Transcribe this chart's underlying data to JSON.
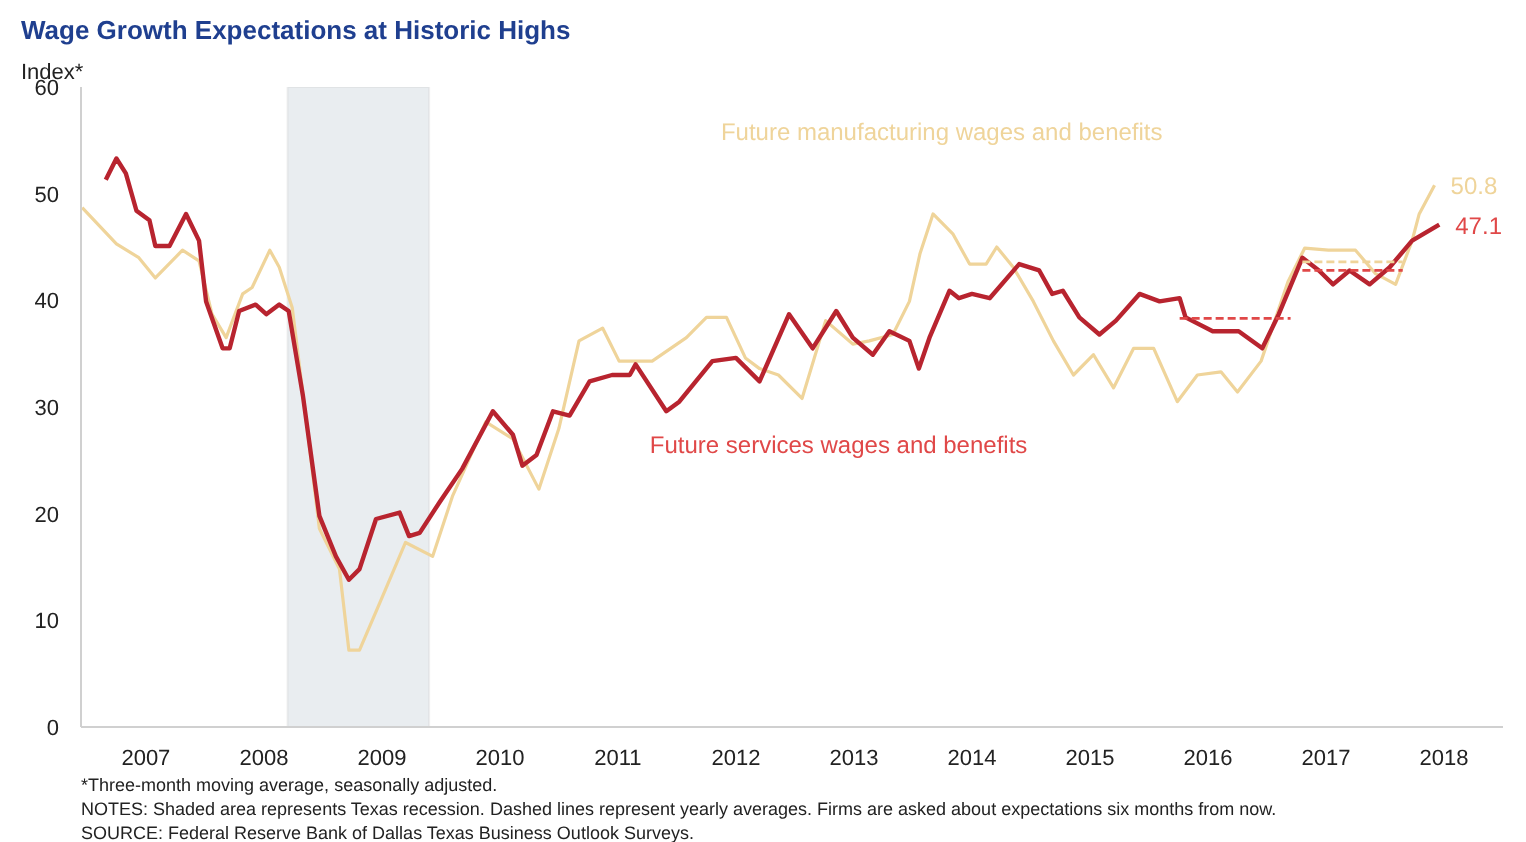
{
  "chart_data": {
    "type": "line",
    "title": "Wage Growth Expectations at Historic Highs",
    "ylabel": "Index*",
    "xlim": [
      2006.95,
      2019
    ],
    "ylim": [
      0,
      60
    ],
    "xticks": [
      {
        "value": 2007.5,
        "label": "2007"
      },
      {
        "value": 2008.5,
        "label": "2008"
      },
      {
        "value": 2009.5,
        "label": "2009"
      },
      {
        "value": 2010.5,
        "label": "2010"
      },
      {
        "value": 2011.5,
        "label": "2011"
      },
      {
        "value": 2012.5,
        "label": "2012"
      },
      {
        "value": 2013.5,
        "label": "2013"
      },
      {
        "value": 2014.5,
        "label": "2014"
      },
      {
        "value": 2015.5,
        "label": "2015"
      },
      {
        "value": 2016.5,
        "label": "2016"
      },
      {
        "value": 2017.5,
        "label": "2017"
      },
      {
        "value": 2018.5,
        "label": "2018"
      }
    ],
    "yticks": [
      0,
      10,
      20,
      30,
      40,
      50,
      60
    ],
    "grid": false,
    "bands": [
      {
        "axis": "x",
        "from": 2008.7,
        "to": 2009.9,
        "color": "#e9edf0"
      }
    ],
    "series": [
      {
        "name": "Future manufacturing wages and benefits",
        "color": "#efd49a",
        "x": [
          2006.96,
          2007.25,
          2007.44,
          2007.58,
          2007.81,
          2007.95,
          2008.06,
          2008.18,
          2008.32,
          2008.4,
          2008.55,
          2008.63,
          2008.74,
          2008.86,
          2008.97,
          2009.14,
          2009.22,
          2009.31,
          2009.48,
          2009.7,
          2009.93,
          2010.1,
          2010.38,
          2010.61,
          2010.83,
          2011.0,
          2011.17,
          2011.37,
          2011.51,
          2011.79,
          2012.08,
          2012.25,
          2012.42,
          2012.58,
          2012.7,
          2012.86,
          2013.06,
          2013.26,
          2013.49,
          2013.63,
          2013.83,
          2013.97,
          2014.06,
          2014.17,
          2014.34,
          2014.48,
          2014.62,
          2014.71,
          2014.85,
          2015.02,
          2015.19,
          2015.36,
          2015.53,
          2015.7,
          2015.87,
          2016.04,
          2016.24,
          2016.41,
          2016.61,
          2016.75,
          2016.95,
          2017.18,
          2017.32,
          2017.52,
          2017.75,
          2017.92,
          2018.09,
          2018.23,
          2018.29,
          2018.42
        ],
        "values": [
          48.7,
          45.3,
          44.0,
          42.1,
          44.7,
          43.7,
          38.7,
          36.5,
          40.6,
          41.2,
          44.7,
          43.1,
          39.3,
          28.6,
          18.6,
          14.8,
          7.2,
          7.2,
          11.6,
          17.3,
          16.0,
          21.7,
          28.6,
          27.0,
          22.3,
          28.0,
          36.2,
          37.4,
          34.3,
          34.3,
          36.5,
          38.4,
          38.4,
          34.6,
          33.6,
          33.0,
          30.8,
          38.1,
          35.9,
          36.2,
          36.8,
          39.9,
          44.4,
          48.1,
          46.2,
          43.4,
          43.4,
          45.0,
          43.1,
          39.9,
          36.2,
          33.0,
          34.9,
          31.8,
          35.5,
          35.5,
          30.5,
          33.0,
          33.3,
          31.4,
          34.3,
          41.8,
          44.9,
          44.7,
          44.7,
          42.5,
          41.5,
          45.6,
          48.1,
          50.8
        ],
        "value_labels": [
          null,
          null,
          null,
          null,
          null,
          null,
          null,
          null,
          null,
          null,
          null,
          null,
          null,
          null,
          null,
          null,
          null,
          null,
          null,
          null,
          null,
          null,
          null,
          null,
          null,
          null,
          null,
          null,
          null,
          null,
          null,
          null,
          null,
          null,
          null,
          null,
          null,
          null,
          null,
          null,
          null,
          null,
          null,
          null,
          null,
          null,
          null,
          null,
          null,
          null,
          null,
          null,
          null,
          null,
          null,
          null,
          null,
          null,
          null,
          null,
          null,
          null,
          null,
          null,
          null,
          null,
          null,
          null,
          null,
          "50.8"
        ]
      },
      {
        "name": "Future services wages and benefits",
        "color": "#b8242f",
        "x": [
          2007.16,
          2007.25,
          2007.33,
          2007.42,
          2007.53,
          2007.58,
          2007.7,
          2007.84,
          2007.95,
          2008.01,
          2008.15,
          2008.21,
          2008.29,
          2008.43,
          2008.52,
          2008.63,
          2008.71,
          2008.83,
          2008.97,
          2009.11,
          2009.22,
          2009.31,
          2009.45,
          2009.65,
          2009.73,
          2009.82,
          2009.99,
          2010.18,
          2010.44,
          2010.61,
          2010.69,
          2010.81,
          2010.95,
          2011.09,
          2011.26,
          2011.45,
          2011.6,
          2011.65,
          2011.91,
          2012.02,
          2012.3,
          2012.5,
          2012.7,
          2012.95,
          2013.15,
          2013.35,
          2013.49,
          2013.66,
          2013.8,
          2013.97,
          2014.05,
          2014.14,
          2014.31,
          2014.39,
          2014.5,
          2014.65,
          2014.9,
          2015.07,
          2015.18,
          2015.27,
          2015.41,
          2015.58,
          2015.72,
          2015.92,
          2016.09,
          2016.26,
          2016.31,
          2016.54,
          2016.76,
          2016.96,
          2017.1,
          2017.3,
          2017.44,
          2017.56,
          2017.7,
          2017.87,
          2018.04,
          2018.23,
          2018.46
        ],
        "values": [
          51.3,
          53.3,
          51.9,
          48.4,
          47.5,
          45.1,
          45.1,
          48.1,
          45.6,
          39.9,
          35.5,
          35.5,
          39.0,
          39.6,
          38.7,
          39.6,
          39.0,
          31.1,
          19.8,
          16.0,
          13.8,
          14.8,
          19.5,
          20.1,
          17.9,
          18.2,
          21.1,
          24.2,
          29.6,
          27.4,
          24.5,
          25.5,
          29.6,
          29.2,
          32.4,
          33.0,
          33.0,
          34.0,
          29.6,
          30.5,
          34.3,
          34.6,
          32.4,
          38.7,
          35.5,
          39.0,
          36.5,
          34.9,
          37.1,
          36.2,
          33.6,
          36.5,
          40.9,
          40.2,
          40.6,
          40.2,
          43.4,
          42.8,
          40.6,
          40.9,
          38.4,
          36.8,
          38.1,
          40.6,
          39.9,
          40.2,
          38.4,
          37.1,
          37.1,
          35.5,
          38.7,
          44.0,
          42.8,
          41.5,
          42.8,
          41.5,
          43.1,
          45.6,
          47.1
        ],
        "value_labels": [
          null,
          null,
          null,
          null,
          null,
          null,
          null,
          null,
          null,
          null,
          null,
          null,
          null,
          null,
          null,
          null,
          null,
          null,
          null,
          null,
          null,
          null,
          null,
          null,
          null,
          null,
          null,
          null,
          null,
          null,
          null,
          null,
          null,
          null,
          null,
          null,
          null,
          null,
          null,
          null,
          null,
          null,
          null,
          null,
          null,
          null,
          null,
          null,
          null,
          null,
          null,
          null,
          null,
          null,
          null,
          null,
          null,
          null,
          null,
          null,
          null,
          null,
          null,
          null,
          null,
          null,
          null,
          null,
          null,
          null,
          null,
          null,
          null,
          null,
          null,
          null,
          null,
          null,
          "47.1"
        ]
      },
      {
        "color": "#e04848",
        "line_style": "dashed",
        "x": [
          2016.26,
          2017.2
        ],
        "values": [
          38.3,
          38.3
        ]
      },
      {
        "color": "#e04848",
        "line_style": "dashed",
        "x": [
          2017.3,
          2018.15
        ],
        "values": [
          42.8,
          42.8
        ]
      },
      {
        "color": "#efd49a",
        "line_style": "dashed",
        "x": [
          2017.3,
          2018.15
        ],
        "values": [
          43.6,
          43.6
        ]
      }
    ],
    "annotations": [
      "*Three-month moving average, seasonally adjusted.",
      "NOTES: Shaded area represents Texas recession. Dashed lines represent yearly averages. Firms are asked about expectations six months from now.",
      "SOURCE: Federal Reserve Bank of Dallas Texas Business Outlook Surveys."
    ]
  }
}
